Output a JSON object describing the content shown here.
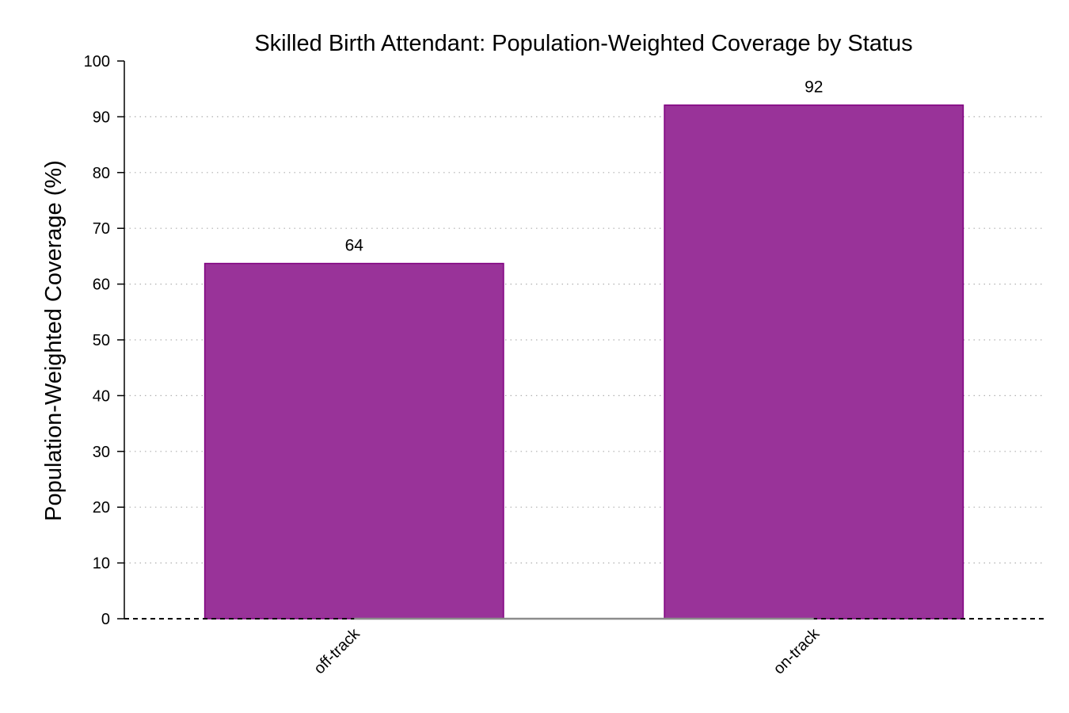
{
  "chart_data": {
    "type": "bar",
    "title": "Skilled Birth Attendant: Population-Weighted Coverage by Status",
    "xlabel": "",
    "ylabel": "Population-Weighted Coverage (%)",
    "categories": [
      "off-track",
      "on-track"
    ],
    "values": [
      63.7,
      92.1
    ],
    "data_labels": [
      "64",
      "92"
    ],
    "ylim": [
      0,
      100
    ],
    "yticks": [
      0,
      10,
      20,
      30,
      40,
      50,
      60,
      70,
      80,
      90,
      100
    ],
    "ytick_labels": [
      "0",
      "10",
      "20",
      "30",
      "40",
      "50",
      "60",
      "70",
      "80",
      "90",
      "100"
    ],
    "grid": "y-dotted",
    "bar_color": "#993399",
    "bar_edge_color": "#800080",
    "legend": "none"
  }
}
